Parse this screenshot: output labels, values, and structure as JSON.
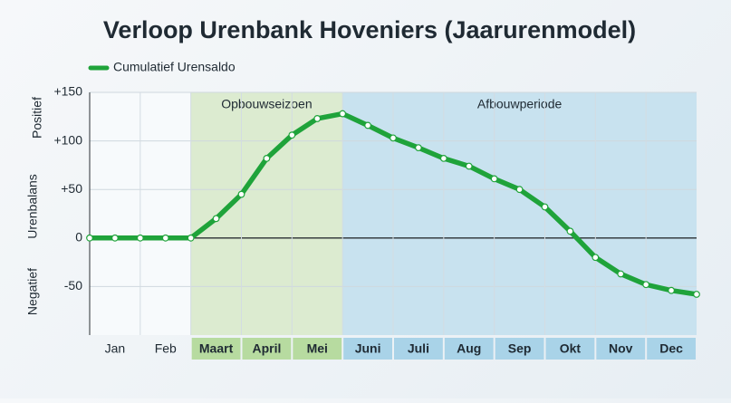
{
  "chart_data": {
    "type": "line",
    "title": "Verloop Urenbank Hoveniers (Jaarurenmodel)",
    "y_labels": {
      "top": "Positief",
      "middle": "Urenbalans",
      "bottom": "Negatief"
    },
    "categories": [
      "Jan",
      "Feb",
      "Maart",
      "April",
      "Mei",
      "Juni",
      "Juli",
      "Aug",
      "Sep",
      "Okt",
      "Nov",
      "Dec"
    ],
    "x": [
      0,
      0.5,
      1,
      1.5,
      2,
      2.5,
      3,
      3.5,
      4,
      4.5,
      5,
      5.5,
      6,
      6.5,
      7,
      7.5,
      8,
      8.5,
      9,
      9.5,
      10,
      10.5,
      11,
      11.5,
      12
    ],
    "xlim": [
      0,
      12
    ],
    "series": [
      {
        "name": "Cumulatief Urensaldo",
        "color": "#1fa33a",
        "values": [
          0,
          0,
          0,
          0,
          0,
          20,
          45,
          82,
          106,
          123,
          128,
          116,
          103,
          93,
          82,
          74,
          61,
          50,
          32,
          7,
          -20,
          -37,
          -48,
          -54,
          -58
        ]
      }
    ],
    "bands": [
      {
        "label": "Opbouwseizoen",
        "start": 2,
        "end": 5,
        "color": "#dcebd0",
        "tick_color": "#b7dba0"
      },
      {
        "label": "Afbouwperiode",
        "start": 5,
        "end": 12,
        "color": "#c8e2ef",
        "tick_color": "#a9d3e8"
      }
    ],
    "ylim": [
      -100,
      150
    ],
    "yticks": [
      {
        "value": -50,
        "label": "-50"
      },
      0,
      {
        "value": 50,
        "label": "+50"
      },
      {
        "value": 100,
        "label": "+100"
      },
      {
        "value": 150,
        "label": "+150"
      }
    ],
    "grid": true
  }
}
